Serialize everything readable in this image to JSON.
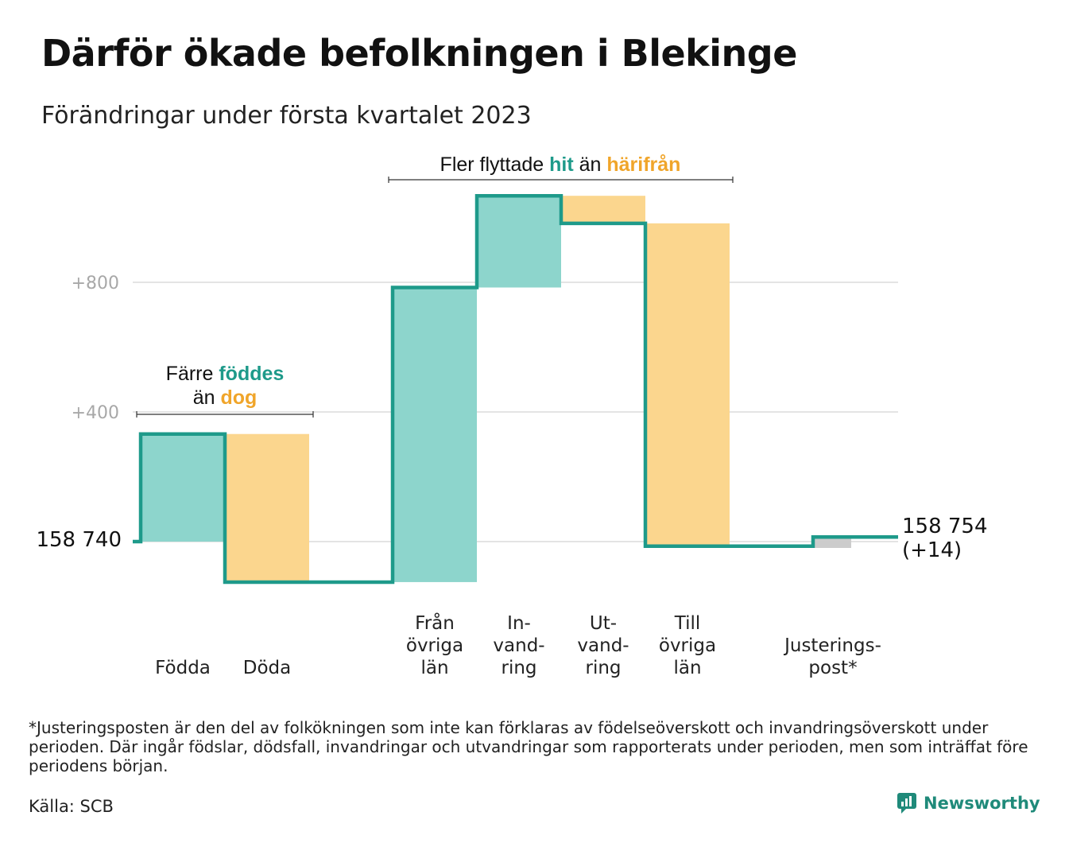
{
  "title": "Därför ökade befolkningen i Blekinge",
  "subtitle": "Förändringar under första kvartalet 2023",
  "colors": {
    "line": "#1e9a8a",
    "increase": "#8dd5cc",
    "decrease": "#fbd68e",
    "adjustment": "#cccccc",
    "grid": "#e4e4e4",
    "hl_teal": "#1e9a8a",
    "hl_orange": "#f0a52a"
  },
  "annotations": {
    "births_deaths": {
      "line1_pre": "Färre ",
      "line1_hl": "föddes",
      "line2_pre": "än ",
      "line2_hl": "dog"
    },
    "migration": {
      "pre": "Fler flyttade ",
      "hl1": "hit",
      "mid": " än ",
      "hl2": "härifrån"
    }
  },
  "start_label": "158 740",
  "end_label_value": "158 754",
  "end_label_change": "(+14)",
  "footnote": "*Justeringsposten är den del av folkökningen som inte kan förklaras av födelseöverskott och invandringsöverskott under perioden. Där ingår födslar, dödsfall, invandringar och utvandringar som rapporterats under perioden, men som inträffat före periodens början.",
  "source": "Källa: SCB",
  "brand": "Newsworthy",
  "brand_icon": "newsworthy-logo-icon",
  "chart_data": {
    "type": "waterfall",
    "title": "Därför ökade befolkningen i Blekinge",
    "subtitle": "Förändringar under första kvartalet 2023",
    "start_value": 158740,
    "end_value": 158754,
    "net_change": 14,
    "y_axis": {
      "unit": "change from start",
      "range": [
        -130,
        1070
      ],
      "ticks": [
        {
          "value": 400,
          "label": "+400"
        },
        {
          "value": 800,
          "label": "+800"
        }
      ],
      "grid": true
    },
    "steps": [
      {
        "label_lines": [
          "Födda"
        ],
        "change": 332,
        "kind": "increase"
      },
      {
        "label_lines": [
          "Döda"
        ],
        "change": -457,
        "kind": "decrease"
      },
      {
        "label_lines": [
          "Från",
          "övriga",
          "län"
        ],
        "change": 909,
        "kind": "increase"
      },
      {
        "label_lines": [
          "In-",
          "vand-",
          "ring"
        ],
        "change": 283,
        "kind": "increase"
      },
      {
        "label_lines": [
          "Ut-",
          "vand-",
          "ring"
        ],
        "change": -85,
        "kind": "decrease"
      },
      {
        "label_lines": [
          "Till",
          "övriga",
          "län"
        ],
        "change": -996,
        "kind": "decrease"
      },
      {
        "label_lines": [
          "Justerings-",
          "post*"
        ],
        "change": 28,
        "kind": "adjustment"
      }
    ]
  }
}
